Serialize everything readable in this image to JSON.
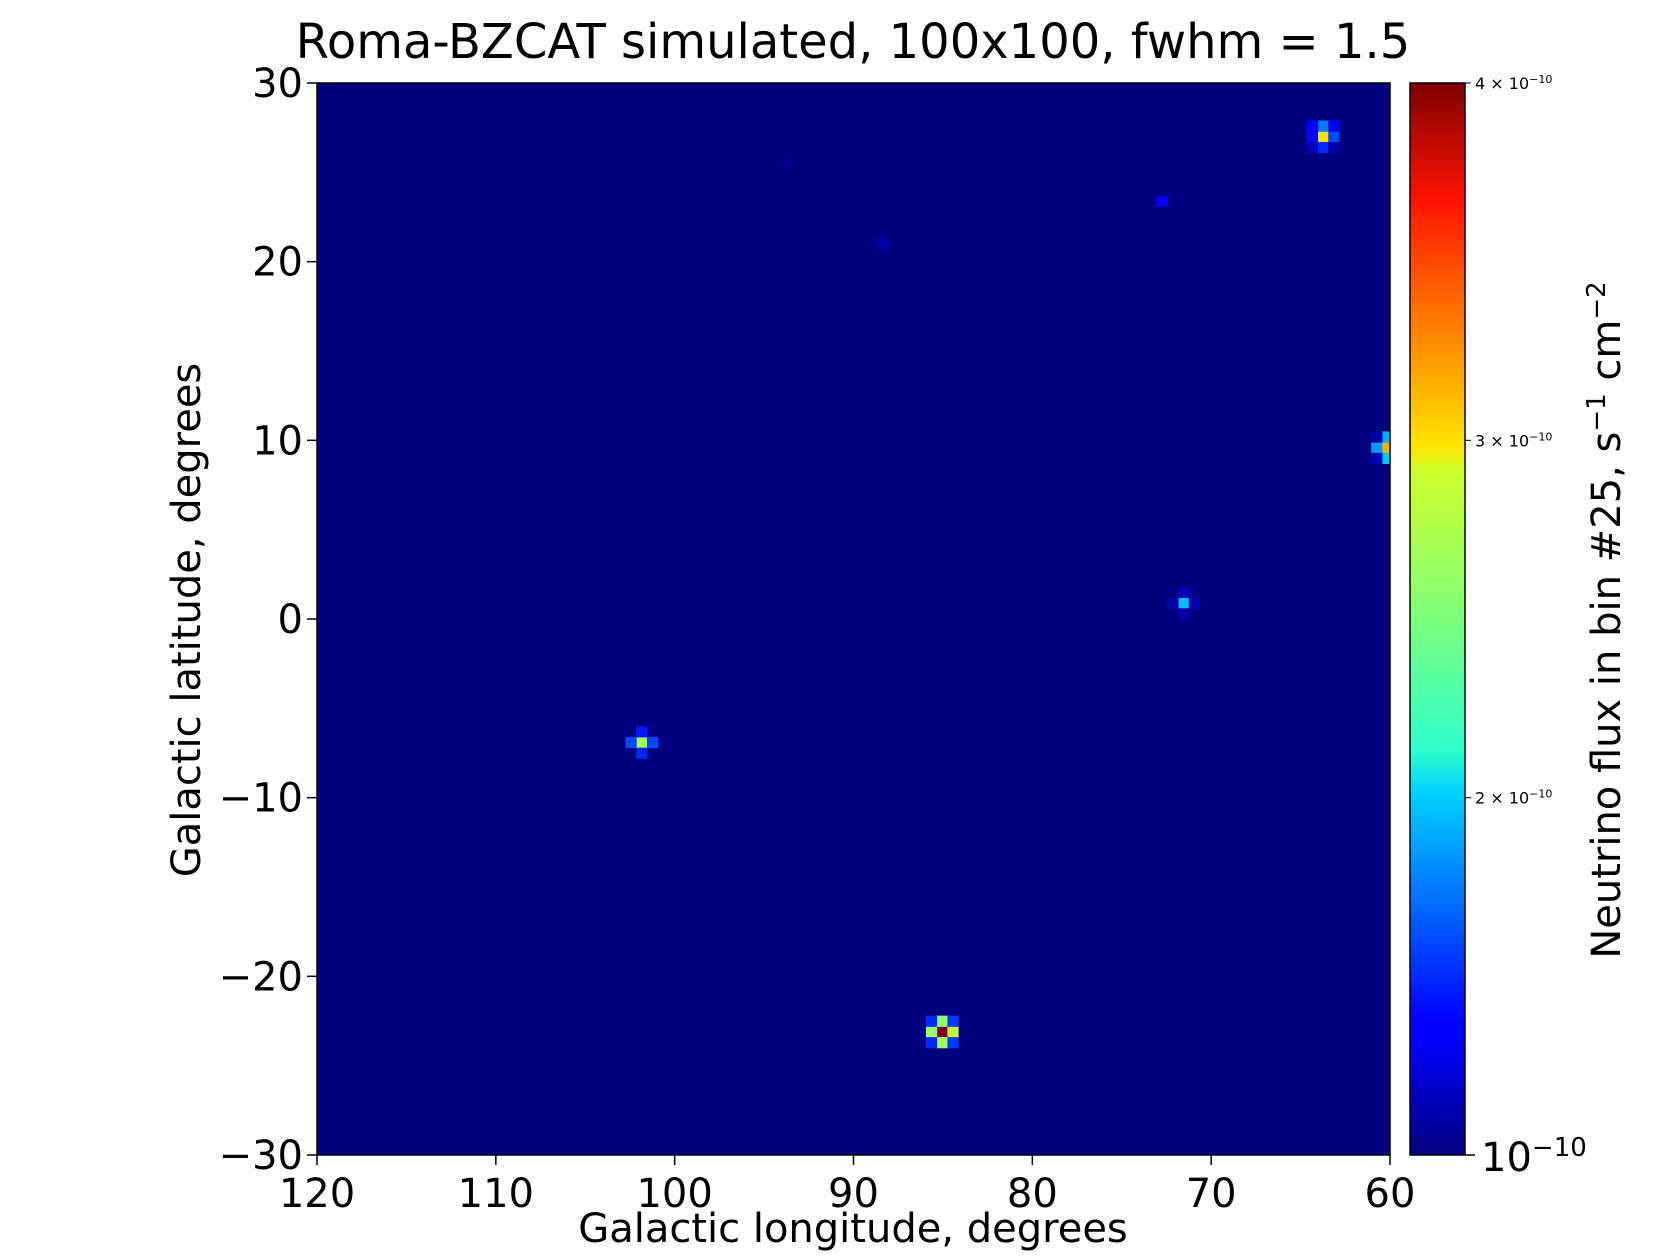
{
  "chart_data": {
    "type": "heatmap",
    "title": "Roma-BZCAT simulated, 100x100, fwhm = 1.5",
    "xlabel": "Galactic longitude, degrees",
    "ylabel": "Galactic latitude, degrees",
    "xlim": [
      120,
      60
    ],
    "ylim": [
      -30,
      30
    ],
    "x_inverted": true,
    "grid": "100x100",
    "x_ticks": [
      "120",
      "110",
      "100",
      "90",
      "80",
      "70",
      "60"
    ],
    "y_ticks": [
      "30",
      "20",
      "10",
      "0",
      "−10",
      "−20",
      "−30"
    ],
    "colormap": "jet",
    "background_color": "#00007f",
    "colorbar": {
      "label": "Neutrino flux in bin #25, s",
      "label_sup1": "−1",
      "label_mid": " cm",
      "label_sup2": "−2",
      "min": 1e-10,
      "max": 4e-10,
      "ticks": [
        {
          "base": "4 × 10",
          "exp": "−10",
          "value": 4e-10
        },
        {
          "base": "3 × 10",
          "exp": "−10",
          "value": 3e-10
        },
        {
          "base": "2 × 10",
          "exp": "−10",
          "value": 2e-10
        },
        {
          "base": "10",
          "exp": "−10",
          "value": 1e-10
        }
      ]
    },
    "cells": [
      {
        "l": 63.75,
        "b": 27.0,
        "flux": 3e-10
      },
      {
        "l": 64.35,
        "b": 27.0,
        "flux": 1.35e-10
      },
      {
        "l": 63.15,
        "b": 27.0,
        "flux": 1.6e-10
      },
      {
        "l": 63.75,
        "b": 27.6,
        "flux": 1.75e-10
      },
      {
        "l": 63.75,
        "b": 26.4,
        "flux": 1.5e-10
      },
      {
        "l": 64.35,
        "b": 27.6,
        "flux": 1.35e-10
      },
      {
        "l": 63.15,
        "b": 27.6,
        "flux": 1.3e-10
      },
      {
        "l": 64.35,
        "b": 26.4,
        "flux": 1.15e-10
      },
      {
        "l": 63.15,
        "b": 26.4,
        "flux": 1.1e-10
      },
      {
        "l": 72.75,
        "b": 23.4,
        "flux": 1.35e-10
      },
      {
        "l": 88.35,
        "b": 21.0,
        "flux": 1.12e-10
      },
      {
        "l": 60.15,
        "b": 9.6,
        "flux": 3.15e-10
      },
      {
        "l": 60.75,
        "b": 9.6,
        "flux": 1.85e-10
      },
      {
        "l": 60.15,
        "b": 10.2,
        "flux": 1.9e-10
      },
      {
        "l": 60.15,
        "b": 9.0,
        "flux": 2e-10
      },
      {
        "l": 60.75,
        "b": 10.2,
        "flux": 1.1e-10
      },
      {
        "l": 60.75,
        "b": 9.0,
        "flux": 1.15e-10
      },
      {
        "l": 71.55,
        "b": 0.9,
        "flux": 1.95e-10
      },
      {
        "l": 72.15,
        "b": 0.9,
        "flux": 1.1e-10
      },
      {
        "l": 70.95,
        "b": 0.9,
        "flux": 1.1e-10
      },
      {
        "l": 71.55,
        "b": 1.5,
        "flux": 1.15e-10
      },
      {
        "l": 71.55,
        "b": 0.3,
        "flux": 1.1e-10
      },
      {
        "l": 101.85,
        "b": -6.9,
        "flux": 2.75e-10
      },
      {
        "l": 102.45,
        "b": -6.9,
        "flux": 1.6e-10
      },
      {
        "l": 101.25,
        "b": -6.9,
        "flux": 1.6e-10
      },
      {
        "l": 101.85,
        "b": -6.3,
        "flux": 1.45e-10
      },
      {
        "l": 101.85,
        "b": -7.5,
        "flux": 1.5e-10
      },
      {
        "l": 85.05,
        "b": -23.1,
        "flux": 4e-10
      },
      {
        "l": 85.65,
        "b": -23.1,
        "flux": 2.65e-10
      },
      {
        "l": 84.45,
        "b": -23.1,
        "flux": 2.85e-10
      },
      {
        "l": 85.05,
        "b": -22.5,
        "flux": 2.6e-10
      },
      {
        "l": 85.05,
        "b": -23.7,
        "flux": 2.7e-10
      },
      {
        "l": 85.65,
        "b": -22.5,
        "flux": 1.5e-10
      },
      {
        "l": 84.45,
        "b": -22.5,
        "flux": 1.55e-10
      },
      {
        "l": 85.65,
        "b": -23.7,
        "flux": 1.5e-10
      },
      {
        "l": 84.45,
        "b": -23.7,
        "flux": 1.55e-10
      },
      {
        "l": 93.85,
        "b": 25.6,
        "flux": 1.02e-10
      }
    ]
  }
}
